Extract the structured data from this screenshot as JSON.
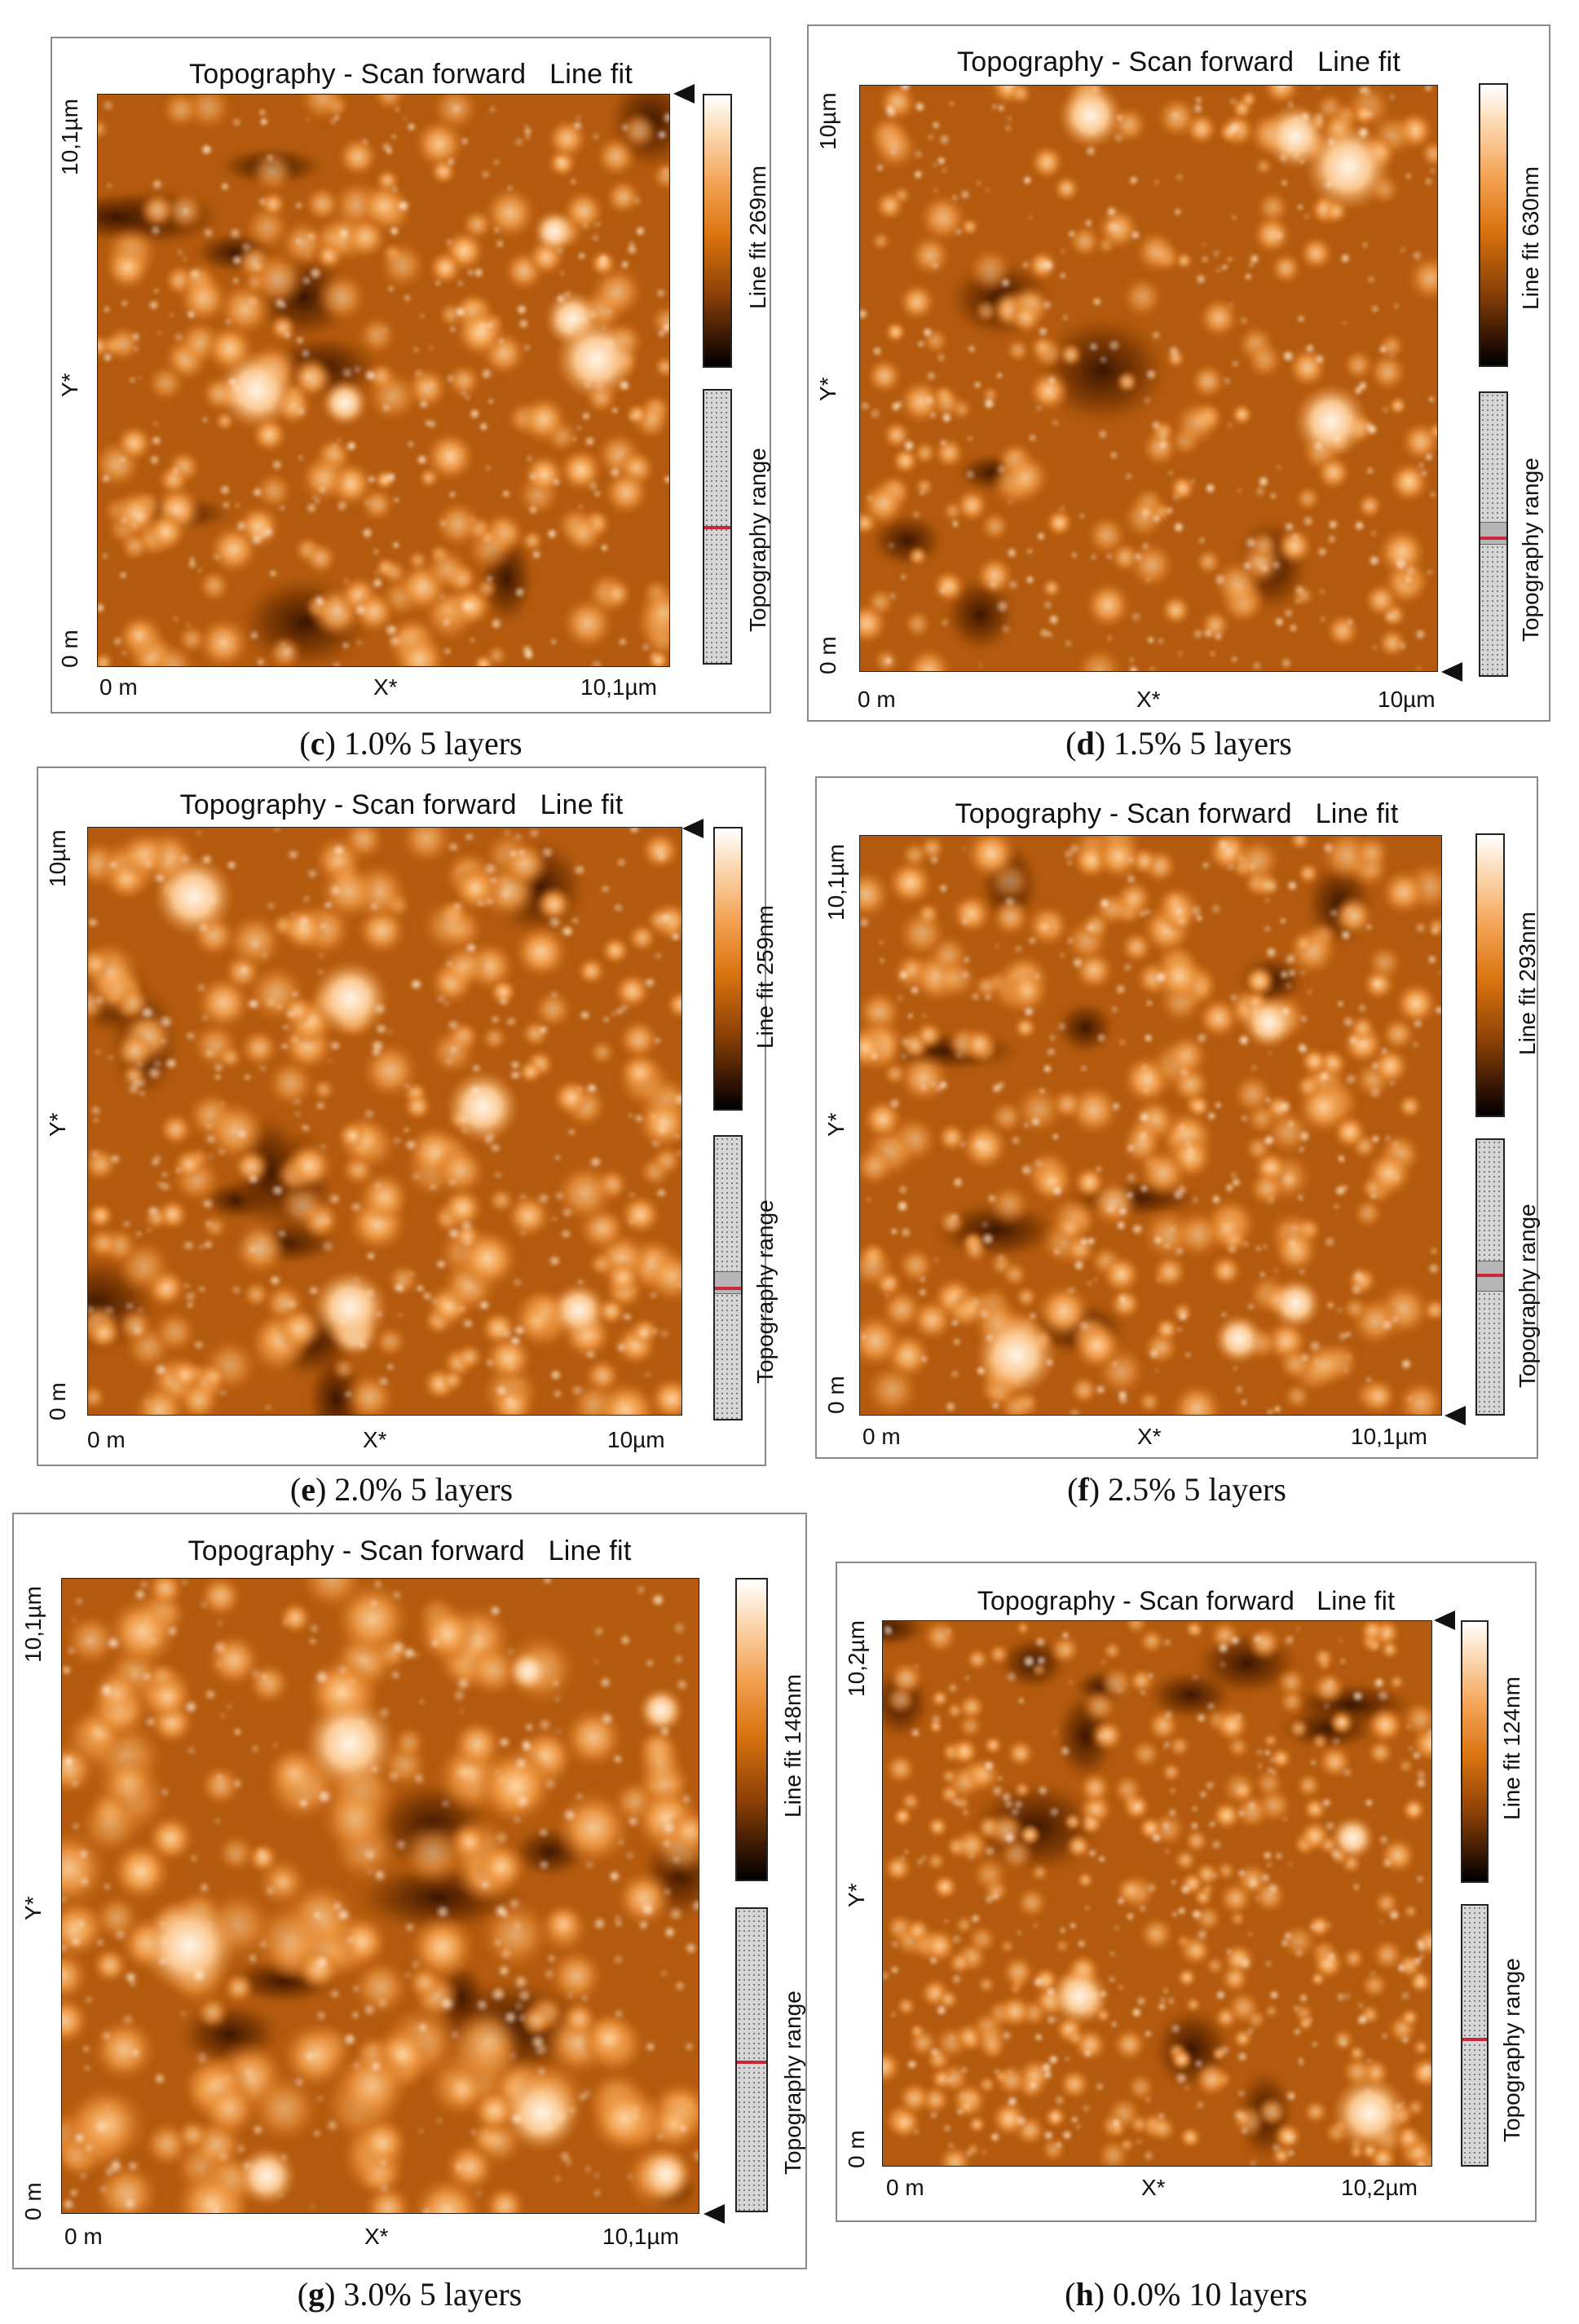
{
  "panels": {
    "c": {
      "title": "Topography - Scan forward   Line fit",
      "y_max": "10,1µm",
      "y_mid": "Y*",
      "y_min": "0 m",
      "x_min": "0 m",
      "x_mid": "X*",
      "x_max": "10,1µm",
      "colorbar_label": "Line fit 269nm",
      "range_label": "Topography range",
      "caption_letter": "c",
      "caption_text": " 1.0% 5 layers"
    },
    "d": {
      "title": "Topography - Scan forward   Line fit",
      "y_max": "10µm",
      "y_mid": "Y*",
      "y_min": "0 m",
      "x_min": "0 m",
      "x_mid": "X*",
      "x_max": "10µm",
      "colorbar_label": "Line fit 630nm",
      "range_label": "Topography range",
      "caption_letter": "d",
      "caption_text": " 1.5% 5 layers"
    },
    "e": {
      "title": "Topography - Scan forward   Line fit",
      "y_max": "10µm",
      "y_mid": "Y*",
      "y_min": "0 m",
      "x_min": "0 m",
      "x_mid": "X*",
      "x_max": "10µm",
      "colorbar_label": "Line fit 259nm",
      "range_label": "Topography range",
      "caption_letter": "e",
      "caption_text": " 2.0% 5 layers"
    },
    "f": {
      "title": "Topography - Scan forward   Line fit",
      "y_max": "10,1µm",
      "y_mid": "Y*",
      "y_min": "0 m",
      "x_min": "0 m",
      "x_mid": "X*",
      "x_max": "10,1µm",
      "colorbar_label": "Line fit 293nm",
      "range_label": "Topography range",
      "caption_letter": "f",
      "caption_text": " 2.5% 5 layers"
    },
    "g": {
      "title": "Topography - Scan forward   Line fit",
      "y_max": "10,1µm",
      "y_mid": "Y*",
      "y_min": "0 m",
      "x_min": "0 m",
      "x_mid": "X*",
      "x_max": "10,1µm",
      "colorbar_label": "Line fit 148nm",
      "range_label": "Topography range",
      "caption_letter": "g",
      "caption_text": " 3.0% 5 layers"
    },
    "h": {
      "title": "Topography - Scan forward   Line fit",
      "y_max": "10,2µm",
      "y_mid": "Y*",
      "y_min": "0 m",
      "x_min": "0 m",
      "x_mid": "X*",
      "x_max": "10,2µm",
      "colorbar_label": "Line fit 124nm",
      "range_label": "Topography range",
      "caption_letter": "h",
      "caption_text": " 0.0% 10 layers"
    }
  },
  "colors": {
    "afm_dark": "#3a1500",
    "afm_mid": "#c2620e",
    "afm_light": "#ffe9cf",
    "range_marker": "#c8283a"
  }
}
